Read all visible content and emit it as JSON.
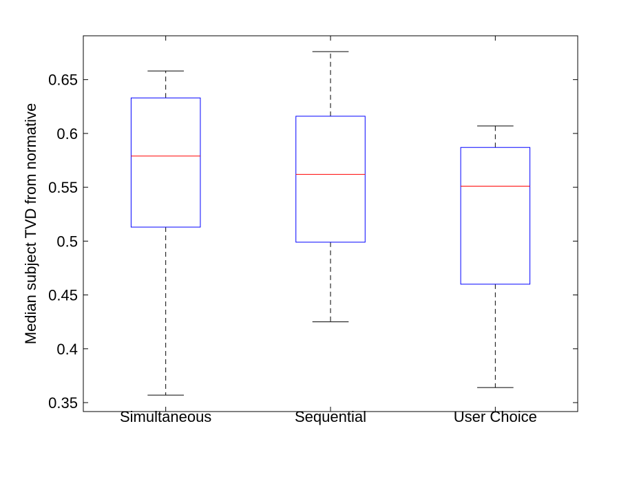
{
  "chart_data": {
    "type": "boxplot",
    "title": "",
    "xlabel": "",
    "ylabel": "Median subject TVD from normative",
    "categories": [
      "Simultaneous",
      "Sequential",
      "User Choice"
    ],
    "boxes": [
      {
        "category": "Simultaneous",
        "whisker_low": 0.357,
        "q1": 0.513,
        "median": 0.579,
        "q3": 0.633,
        "whisker_high": 0.658
      },
      {
        "category": "Sequential",
        "whisker_low": 0.425,
        "q1": 0.499,
        "median": 0.562,
        "q3": 0.616,
        "whisker_high": 0.676
      },
      {
        "category": "User Choice",
        "whisker_low": 0.364,
        "q1": 0.46,
        "median": 0.551,
        "q3": 0.587,
        "whisker_high": 0.607
      }
    ],
    "ylim": [
      0.3417,
      0.6907
    ],
    "yticks": [
      "0.35",
      "0.4",
      "0.45",
      "0.5",
      "0.55",
      "0.6",
      "0.65"
    ],
    "grid": false,
    "legend": "none",
    "colors": {
      "box": "#0000ff",
      "median": "#ff0000",
      "whisker": "#000000",
      "axes": "#000000"
    }
  }
}
